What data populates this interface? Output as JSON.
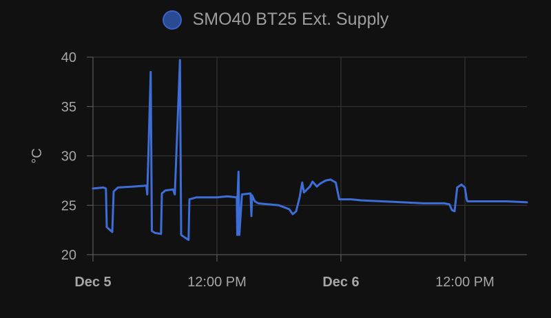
{
  "legend": {
    "label": "SMO40 BT25 Ext. Supply",
    "swatch_color": "#2b4a94",
    "border_color": "#3a62c8"
  },
  "colors": {
    "background": "#111111",
    "line": "#3d6dd6",
    "grid": "#3a3a3a",
    "axis": "#666666",
    "text": "#a6a6a6"
  },
  "chart_data": {
    "type": "line",
    "ylabel": "°C",
    "xlabel": "",
    "ylim": [
      20,
      40
    ],
    "xlim": [
      "2023-12-05 00:00",
      "2023-12-06 18:00"
    ],
    "grid": true,
    "legend_position": "top-center",
    "yticks": [
      20,
      25,
      30,
      35,
      40
    ],
    "xticks": [
      {
        "at": "2023-12-05 00:00",
        "label": "Dec 5",
        "bold": true
      },
      {
        "at": "2023-12-05 12:00",
        "label": "12:00 PM",
        "bold": false
      },
      {
        "at": "2023-12-06 00:00",
        "label": "Dec 6",
        "bold": true
      },
      {
        "at": "2023-12-06 12:00",
        "label": "12:00 PM",
        "bold": false
      }
    ],
    "series": [
      {
        "name": "SMO40 BT25 Ext. Supply",
        "points": [
          [
            "2023-12-05 00:00",
            26.7
          ],
          [
            "2023-12-05 01:00",
            26.8
          ],
          [
            "2023-12-05 01:15",
            26.7
          ],
          [
            "2023-12-05 01:20",
            22.8
          ],
          [
            "2023-12-05 01:45",
            22.4
          ],
          [
            "2023-12-05 01:52",
            22.3
          ],
          [
            "2023-12-05 02:00",
            26.4
          ],
          [
            "2023-12-05 02:25",
            26.8
          ],
          [
            "2023-12-05 04:00",
            26.9
          ],
          [
            "2023-12-05 05:10",
            27.0
          ],
          [
            "2023-12-05 05:15",
            26.1
          ],
          [
            "2023-12-05 05:35",
            38.5
          ],
          [
            "2023-12-05 05:42",
            22.4
          ],
          [
            "2023-12-05 06:00",
            22.2
          ],
          [
            "2023-12-05 06:35",
            22.1
          ],
          [
            "2023-12-05 06:40",
            26.2
          ],
          [
            "2023-12-05 07:00",
            26.5
          ],
          [
            "2023-12-05 07:45",
            26.6
          ],
          [
            "2023-12-05 07:55",
            26.1
          ],
          [
            "2023-12-05 08:25",
            39.7
          ],
          [
            "2023-12-05 08:32",
            22.0
          ],
          [
            "2023-12-05 09:05",
            21.6
          ],
          [
            "2023-12-05 09:15",
            21.5
          ],
          [
            "2023-12-05 09:20",
            25.6
          ],
          [
            "2023-12-05 10:00",
            25.8
          ],
          [
            "2023-12-05 12:00",
            25.8
          ],
          [
            "2023-12-05 13:00",
            25.9
          ],
          [
            "2023-12-05 13:55",
            25.8
          ],
          [
            "2023-12-05 13:58",
            22.0
          ],
          [
            "2023-12-05 14:00",
            26.0
          ],
          [
            "2023-12-05 14:05",
            28.4
          ],
          [
            "2023-12-05 14:10",
            22.0
          ],
          [
            "2023-12-05 14:25",
            26.1
          ],
          [
            "2023-12-05 15:15",
            26.2
          ],
          [
            "2023-12-05 15:20",
            23.9
          ],
          [
            "2023-12-05 15:24",
            26.0
          ],
          [
            "2023-12-05 15:40",
            25.4
          ],
          [
            "2023-12-05 16:00",
            25.2
          ],
          [
            "2023-12-05 18:00",
            25.0
          ],
          [
            "2023-12-05 19:00",
            24.6
          ],
          [
            "2023-12-05 19:20",
            24.1
          ],
          [
            "2023-12-05 19:40",
            24.4
          ],
          [
            "2023-12-05 20:00",
            25.8
          ],
          [
            "2023-12-05 20:15",
            27.3
          ],
          [
            "2023-12-05 20:25",
            26.3
          ],
          [
            "2023-12-05 21:00",
            26.9
          ],
          [
            "2023-12-05 21:15",
            27.4
          ],
          [
            "2023-12-05 21:40",
            26.9
          ],
          [
            "2023-12-05 22:00",
            27.2
          ],
          [
            "2023-12-05 22:30",
            27.5
          ],
          [
            "2023-12-05 23:00",
            27.6
          ],
          [
            "2023-12-05 23:30",
            27.3
          ],
          [
            "2023-12-05 23:50",
            25.6
          ],
          [
            "2023-12-06 01:00",
            25.6
          ],
          [
            "2023-12-06 02:00",
            25.5
          ],
          [
            "2023-12-06 04:00",
            25.4
          ],
          [
            "2023-12-06 06:00",
            25.3
          ],
          [
            "2023-12-06 08:00",
            25.2
          ],
          [
            "2023-12-06 10:00",
            25.2
          ],
          [
            "2023-12-06 10:30",
            25.1
          ],
          [
            "2023-12-06 10:45",
            24.5
          ],
          [
            "2023-12-06 11:00",
            24.4
          ],
          [
            "2023-12-06 11:15",
            26.8
          ],
          [
            "2023-12-06 11:40",
            27.1
          ],
          [
            "2023-12-06 12:00",
            26.8
          ],
          [
            "2023-12-06 12:10",
            25.6
          ],
          [
            "2023-12-06 12:15",
            25.4
          ],
          [
            "2023-12-06 14:00",
            25.4
          ],
          [
            "2023-12-06 16:00",
            25.4
          ],
          [
            "2023-12-06 18:00",
            25.3
          ]
        ]
      }
    ]
  }
}
